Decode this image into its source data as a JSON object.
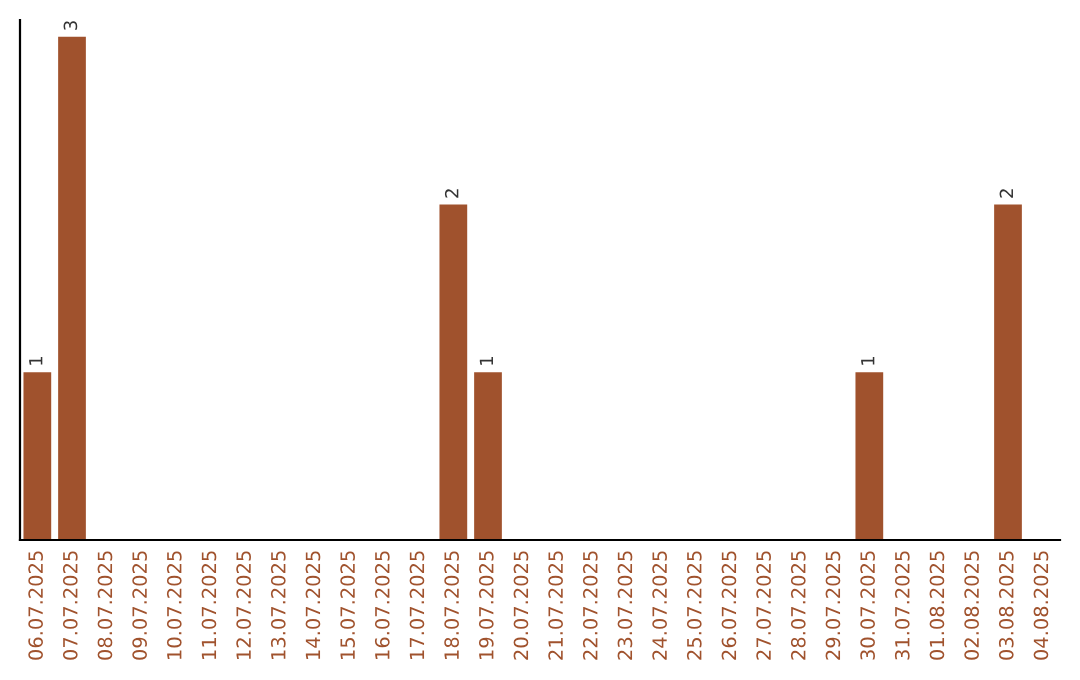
{
  "chart_data": {
    "type": "bar",
    "categories": [
      "06.07.2025",
      "07.07.2025",
      "08.07.2025",
      "09.07.2025",
      "10.07.2025",
      "11.07.2025",
      "12.07.2025",
      "13.07.2025",
      "14.07.2025",
      "15.07.2025",
      "16.07.2025",
      "17.07.2025",
      "18.07.2025",
      "19.07.2025",
      "20.07.2025",
      "21.07.2025",
      "22.07.2025",
      "23.07.2025",
      "24.07.2025",
      "25.07.2025",
      "26.07.2025",
      "27.07.2025",
      "28.07.2025",
      "29.07.2025",
      "30.07.2025",
      "31.07.2025",
      "01.08.2025",
      "02.08.2025",
      "03.08.2025",
      "04.08.2025"
    ],
    "values": [
      1,
      3,
      0,
      0,
      0,
      0,
      0,
      0,
      0,
      0,
      0,
      0,
      2,
      1,
      0,
      0,
      0,
      0,
      0,
      0,
      0,
      0,
      0,
      0,
      1,
      0,
      0,
      0,
      2,
      0
    ],
    "value_labels": [
      "1",
      "3",
      null,
      null,
      null,
      null,
      null,
      null,
      null,
      null,
      null,
      null,
      "2",
      "1",
      null,
      null,
      null,
      null,
      null,
      null,
      null,
      null,
      null,
      null,
      "1",
      null,
      null,
      null,
      "2",
      null
    ],
    "color": "#a0522d",
    "ylim": [
      0,
      3.1
    ],
    "tick_labels": "x",
    "grid": false,
    "legend": false
  }
}
